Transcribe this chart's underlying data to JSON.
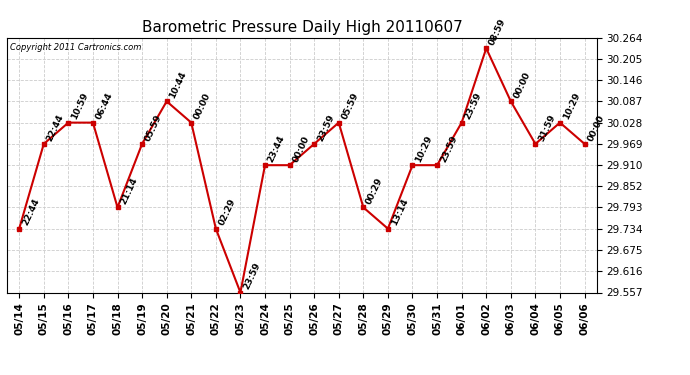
{
  "title": "Barometric Pressure Daily High 20110607",
  "copyright": "Copyright 2011 Cartronics.com",
  "background_color": "#ffffff",
  "line_color": "#cc0000",
  "grid_color": "#cccccc",
  "dates": [
    "05/14",
    "05/15",
    "05/16",
    "05/17",
    "05/18",
    "05/19",
    "05/20",
    "05/21",
    "05/22",
    "05/23",
    "05/24",
    "05/25",
    "05/26",
    "05/27",
    "05/28",
    "05/29",
    "05/30",
    "05/31",
    "06/01",
    "06/02",
    "06/03",
    "06/04",
    "06/05",
    "06/06"
  ],
  "values": [
    29.734,
    29.969,
    30.028,
    30.028,
    29.793,
    29.969,
    30.087,
    30.028,
    29.734,
    29.557,
    29.91,
    29.91,
    29.969,
    30.028,
    29.793,
    29.734,
    29.91,
    29.91,
    30.028,
    30.234,
    30.087,
    29.969,
    30.028,
    29.969
  ],
  "time_labels": [
    "22:44",
    "22:44",
    "10:59",
    "06:44",
    "21:14",
    "05:59",
    "10:44",
    "00:00",
    "02:29",
    "23:59",
    "23:44",
    "00:00",
    "23:59",
    "05:59",
    "00:29",
    "13:14",
    "10:29",
    "23:59",
    "23:59",
    "08:59",
    "00:00",
    "31:59",
    "10:29",
    "00:00"
  ],
  "ylim": [
    29.557,
    30.264
  ],
  "yticks": [
    29.557,
    29.616,
    29.675,
    29.734,
    29.793,
    29.852,
    29.91,
    29.969,
    30.028,
    30.087,
    30.146,
    30.205,
    30.264
  ],
  "title_fontsize": 11,
  "tick_fontsize": 7.5,
  "label_fontsize": 6.5,
  "marker_size": 3,
  "line_width": 1.5
}
